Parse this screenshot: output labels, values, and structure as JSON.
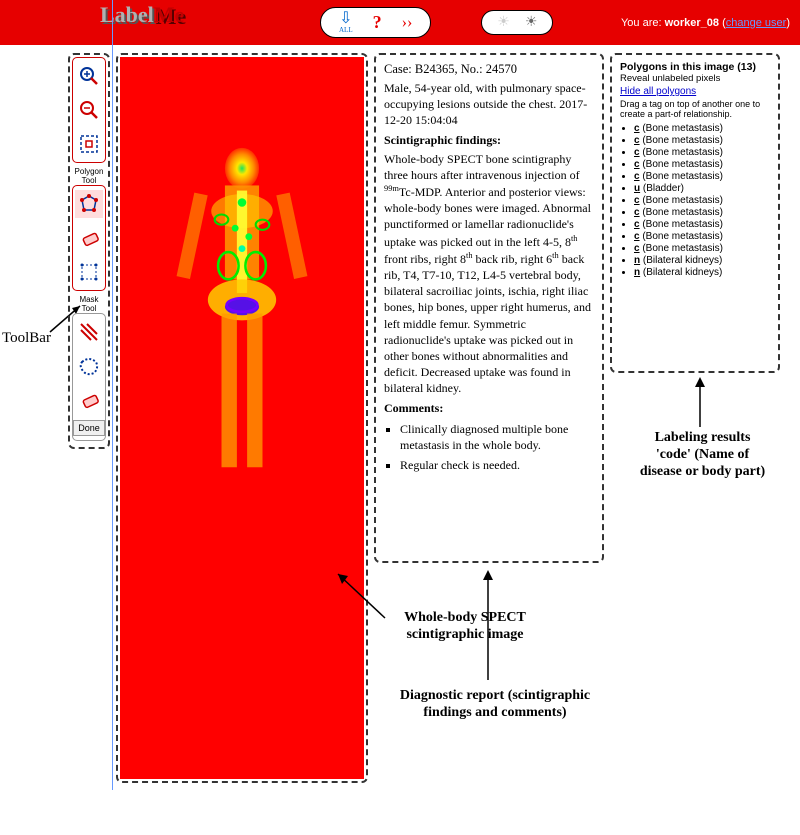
{
  "header": {
    "logo_part1": "Label",
    "logo_part2": "Me",
    "all_label": "ALL",
    "user_prefix": "You are:",
    "username": "worker_08",
    "change_user": "change user"
  },
  "toolbar": {
    "label": "ToolBar",
    "polygon_tool_label": "Polygon Tool",
    "mask_tool_label": "Mask Tool",
    "done_label": "Done"
  },
  "report": {
    "case_line": "Case: B24365, No.: 24570",
    "patient_line": "Male, 54-year old, with pulmonary space-occupying lesions outside the chest. 2017-12-20  15:04:04",
    "findings_title": "Scintigraphic findings:",
    "findings_body_pre": "Whole-body SPECT bone scintigraphy three hours after intravenous injection of ",
    "findings_body_sup": "99m",
    "findings_body_mid": "Tc-MDP. Anterior and posterior views: whole-body bones were imaged. Abnormal punctiformed or lamellar radionuclide's uptake was picked out in the left 4-5, 8",
    "findings_body_mid2": " front ribs, right 8",
    "findings_body_mid3": " back rib, right 6",
    "findings_body_mid4": " back rib, T4, T7-10, T12, L4-5 vertebral body, bilateral sacroiliac joints, ischia, right iliac bones, hip bones, upper right humerus, and left middle femur. Symmetric radionuclide's uptake was picked out in other bones without abnormalities and deficit. Decreased uptake was found in bilateral kidney.",
    "th": "th",
    "comments_title": "Comments:",
    "comment1": "Clinically diagnosed multiple bone metastasis in the whole body.",
    "comment2": "Regular check is needed."
  },
  "polygons": {
    "title": "Polygons in this image (13)",
    "reveal": "Reveal unlabeled pixels",
    "hide": "Hide all polygons",
    "hint": "Drag a tag on top of another one to create a part-of relationship.",
    "items": [
      {
        "code": "c",
        "name": "Bone metastasis"
      },
      {
        "code": "c",
        "name": "Bone metastasis"
      },
      {
        "code": "c",
        "name": "Bone metastasis"
      },
      {
        "code": "c",
        "name": "Bone metastasis"
      },
      {
        "code": "c",
        "name": "Bone metastasis"
      },
      {
        "code": "u",
        "name": "Bladder"
      },
      {
        "code": "c",
        "name": "Bone metastasis"
      },
      {
        "code": "c",
        "name": "Bone metastasis"
      },
      {
        "code": "c",
        "name": "Bone metastasis"
      },
      {
        "code": "c",
        "name": "Bone metastasis"
      },
      {
        "code": "c",
        "name": "Bone metastasis"
      },
      {
        "code": "n",
        "name": "Bilateral kidneys"
      },
      {
        "code": "n",
        "name": "Bilateral kidneys"
      }
    ]
  },
  "callouts": {
    "image_label": "Whole-body SPECT scintigraphic image",
    "report_label": "Diagnostic report (scintigraphic findings and comments)",
    "polygons_label1": "Labeling results",
    "polygons_label2": "'code' (Name of",
    "polygons_label3": "disease or body part)"
  },
  "colors": {
    "header_bg": "#e60000",
    "image_bg": "#ff0000",
    "accent_red": "#cc0000",
    "link_blue": "#0000cc",
    "dashed_border": "#333333"
  }
}
